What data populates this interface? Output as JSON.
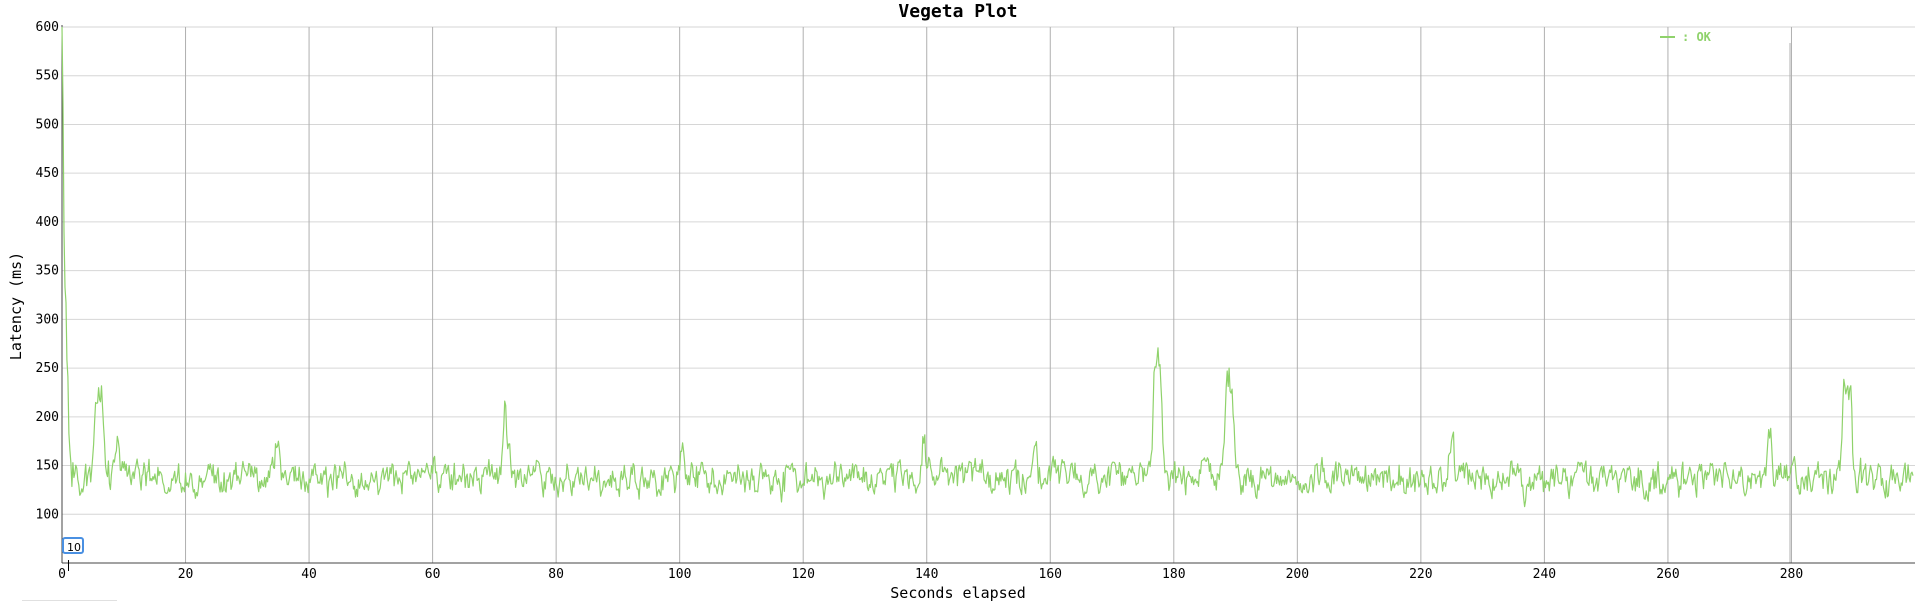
{
  "chart_data": {
    "type": "line",
    "title": "Vegeta Plot",
    "xlabel": "Seconds elapsed",
    "ylabel": "Latency (ms)",
    "xlim": [
      0,
      300
    ],
    "ylim": [
      50,
      600
    ],
    "xticks": [
      0,
      20,
      40,
      60,
      80,
      100,
      120,
      140,
      160,
      180,
      200,
      220,
      240,
      260,
      280
    ],
    "yticks": [
      100,
      150,
      200,
      250,
      300,
      350,
      400,
      450,
      500,
      550,
      600
    ],
    "grid": true,
    "legend_position": "top-right",
    "baseline_ms": 137,
    "noise_ms": 16,
    "series": [
      {
        "name": "OK",
        "legend_label": ": OK",
        "color": "#8fd26b",
        "points": [
          [
            0,
            600
          ],
          [
            0.2,
            420
          ],
          [
            0.5,
            330
          ],
          [
            0.8,
            240
          ],
          [
            1.2,
            170
          ],
          [
            1.8,
            145
          ],
          [
            5.5,
            212
          ],
          [
            5.9,
            224
          ],
          [
            6.4,
            215
          ],
          [
            9.0,
            175
          ],
          [
            35.0,
            182
          ],
          [
            71.8,
            206
          ],
          [
            72.3,
            188
          ],
          [
            100.5,
            175
          ],
          [
            139.5,
            187
          ],
          [
            157.5,
            188
          ],
          [
            177.0,
            256
          ],
          [
            177.4,
            258
          ],
          [
            177.8,
            245
          ],
          [
            188.6,
            230
          ],
          [
            189.0,
            244
          ],
          [
            189.4,
            236
          ],
          [
            225.0,
            178
          ],
          [
            236.7,
            104
          ],
          [
            276.5,
            183
          ],
          [
            288.6,
            238
          ],
          [
            289.0,
            246
          ],
          [
            289.5,
            240
          ],
          [
            299.5,
            150
          ]
        ]
      }
    ]
  },
  "editor": {
    "value": "10"
  }
}
